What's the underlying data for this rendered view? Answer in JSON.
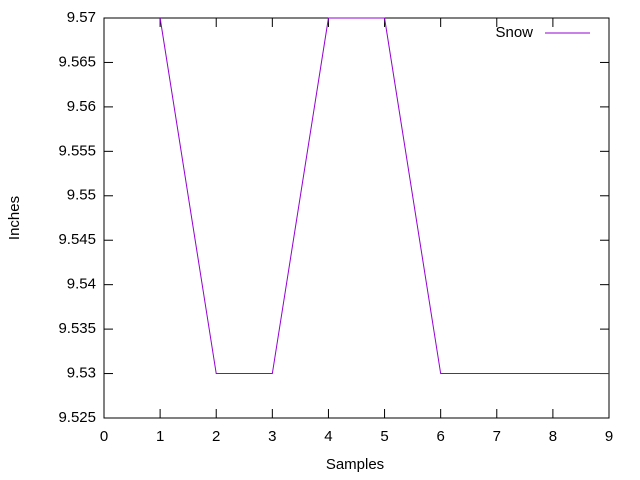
{
  "chart_data": {
    "type": "line",
    "x_label": "Samples",
    "y_label": "Inches",
    "x": [
      1,
      2,
      3,
      4,
      5,
      6,
      7,
      8,
      9
    ],
    "series": [
      {
        "name": "Snow",
        "color": "#9400d3",
        "values": [
          9.57,
          9.53,
          9.53,
          9.57,
          9.57,
          9.53,
          9.53,
          9.53,
          9.53
        ]
      }
    ],
    "xlim": [
      0,
      9
    ],
    "xticks": [
      0,
      1,
      2,
      3,
      4,
      5,
      6,
      7,
      8,
      9
    ],
    "ylim": [
      9.525,
      9.57
    ],
    "yticks": [
      9.525,
      9.53,
      9.535,
      9.54,
      9.545,
      9.55,
      9.555,
      9.56,
      9.565,
      9.57
    ],
    "legend": "top right",
    "grid": false
  }
}
